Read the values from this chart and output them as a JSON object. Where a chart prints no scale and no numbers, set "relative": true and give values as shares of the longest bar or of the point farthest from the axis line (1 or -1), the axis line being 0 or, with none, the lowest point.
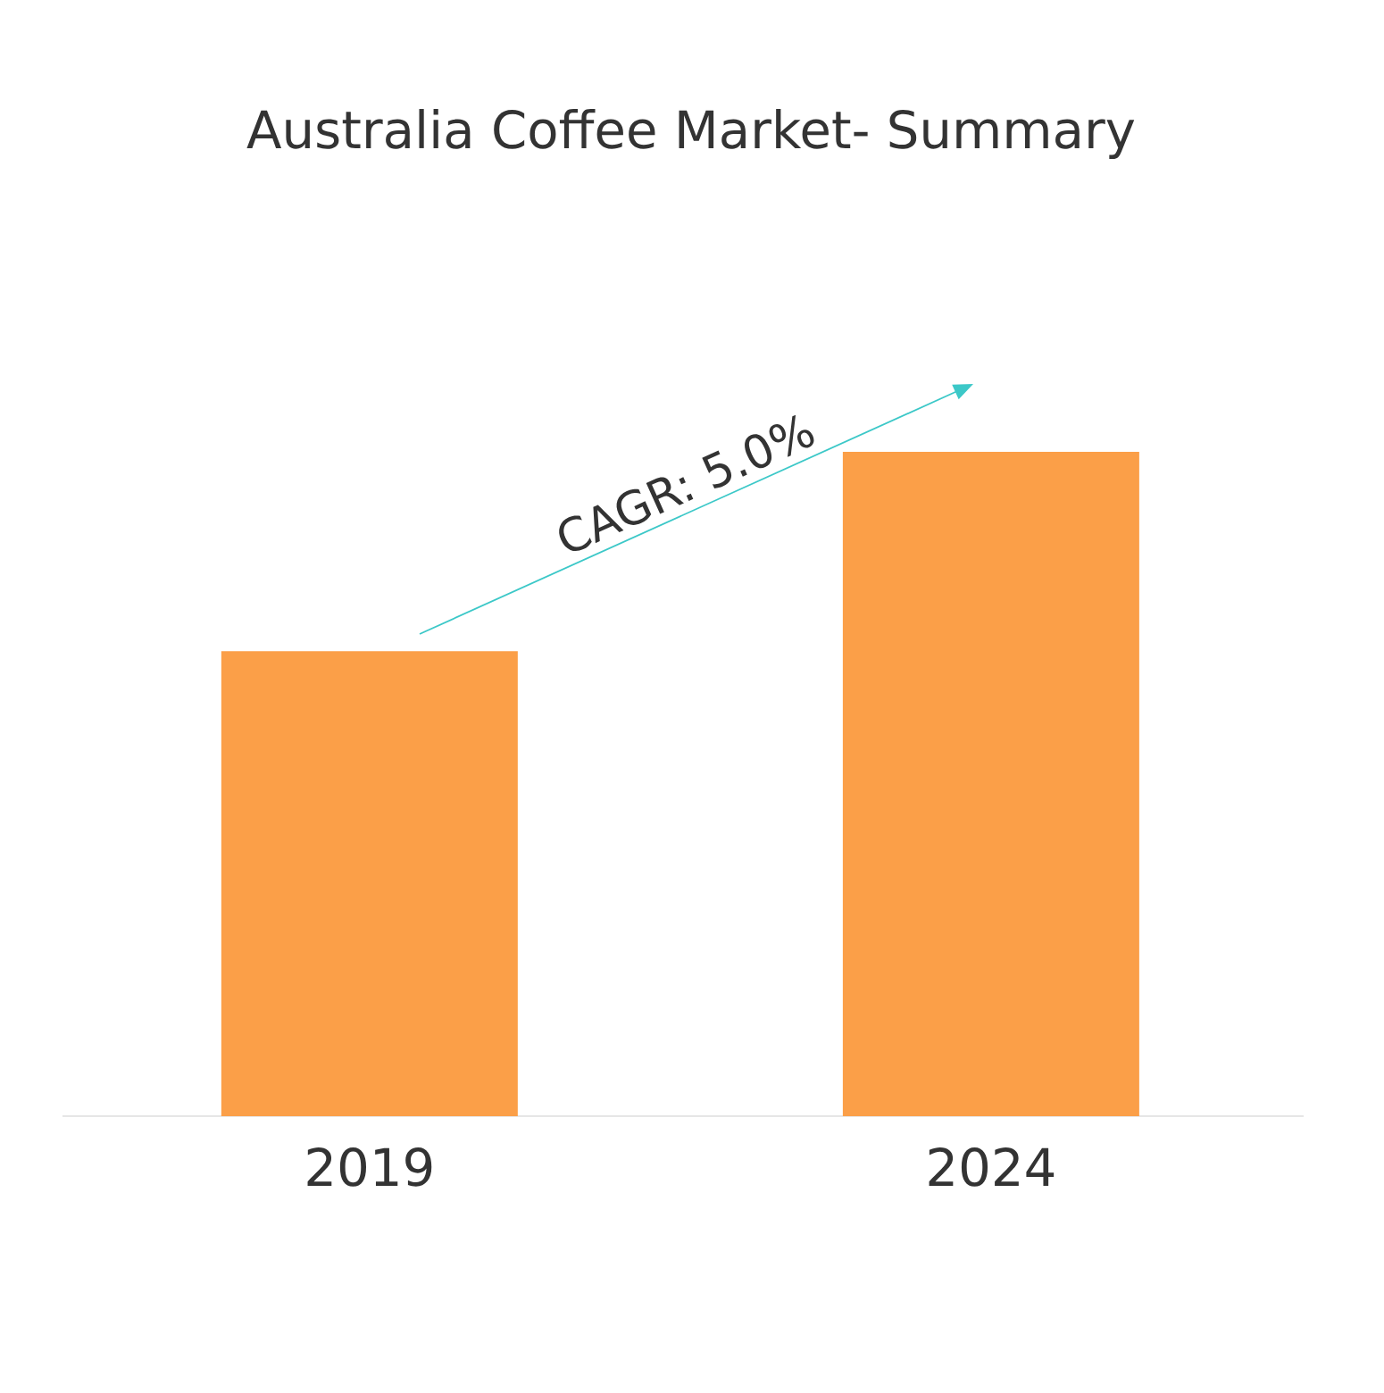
{
  "chart_data": {
    "type": "bar",
    "title": "Australia Coffee Market- Summary",
    "categories": [
      "2019",
      "2024"
    ],
    "values": [
      0.7,
      1
    ],
    "color": "#fb9f48",
    "relative": true,
    "annotations": [
      "CAGR: 5.0%"
    ]
  }
}
